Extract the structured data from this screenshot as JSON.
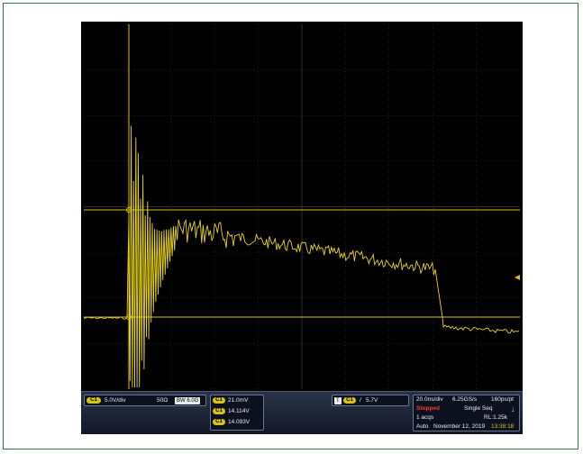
{
  "channel": {
    "label": "C1",
    "scale": "5.0V/div",
    "impedance": "50Ω",
    "bandwidth": "BW 6.0G"
  },
  "measurements": [
    {
      "label": "C1",
      "value": "21.0mV"
    },
    {
      "label": "C1",
      "value": "14.114V"
    },
    {
      "label": "C1",
      "value": "14.093V"
    }
  ],
  "trigger": {
    "source": "C1",
    "slope_icon": "rising-edge-icon",
    "level": "5.7V"
  },
  "acquisition": {
    "horizontal": "20.0ns/div",
    "sample_rate": "6.25GS/s",
    "resolution": "160ps/pt",
    "state": "Stopped",
    "mode": "Single Seq",
    "acqs": "1 acqs",
    "record_length": "RL:1.25k",
    "trigger_mode": "Auto",
    "date": "November 12, 2019",
    "time": "13:38:18"
  },
  "colors": {
    "trace": "#e6d21a",
    "grid": "#5a5a5a",
    "accent": "#d4c21a",
    "stopped": "#ff3b30"
  }
}
